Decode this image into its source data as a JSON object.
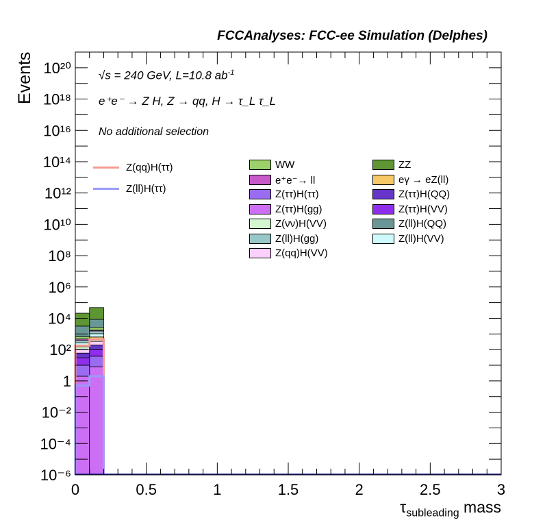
{
  "header": {
    "title": "FCCAnalyses: FCC-ee Simulation (Delphes)"
  },
  "annotations": {
    "energy": "√s = 240 GeV, L=10.8 ab",
    "energy_exp": "-1",
    "process": "e⁺e⁻ → Z H, Z → qq, H → τ_L τ_L",
    "selection": "No additional selection"
  },
  "colors": {
    "WW": "#9bd06a",
    "ZZ": "#5f9634",
    "ee_ll": "#c859c8",
    "egamma_eZll": "#f7c866",
    "Ztautau_Htautau": "#9a6cf2",
    "Ztautau_HQQ": "#6635c9",
    "Ztautau_Hgg": "#cd6ff4",
    "Ztautau_HVV": "#8f2fed",
    "Znunu_HVV": "#d3f6d0",
    "Zll_HQQ": "#699796",
    "Zll_Hgg": "#99c6c8",
    "Zll_HVV": "#cdfafa",
    "Zqq_HVV": "#fcd0fc",
    "signal_qq": "#f79a92",
    "signal_ll": "#9a9bf5"
  },
  "chart_data": {
    "type": "bar",
    "stacked": true,
    "log_y": true,
    "xlabel": "τ_subleading mass",
    "ylabel": "Events",
    "xlim": [
      0,
      3
    ],
    "ylim": [
      1e-06,
      1e+21
    ],
    "x_ticks": [
      "0",
      "0.5",
      "1",
      "1.5",
      "2",
      "2.5",
      "3"
    ],
    "y_ticks": [
      "10⁻⁶",
      "10⁻⁴",
      "10⁻²",
      "1",
      "10²",
      "10⁴",
      "10⁶",
      "10⁸",
      "10¹⁰",
      "10¹²",
      "10¹⁴",
      "10¹⁶",
      "10¹⁸",
      "10²⁰"
    ],
    "bins": [
      [
        0.0,
        0.1
      ],
      [
        0.1,
        0.2
      ]
    ],
    "backgrounds": [
      {
        "name": "Z(ττ)H(gg)",
        "color": "#cd6ff4",
        "values": [
          2,
          8
        ]
      },
      {
        "name": "Z(ττ)H(ττ)",
        "color": "#9a6cf2",
        "values": [
          8,
          30
        ]
      },
      {
        "name": "Z(ττ)H(VV)",
        "color": "#8f2fed",
        "values": [
          20,
          60
        ]
      },
      {
        "name": "Z(ττ)H(QQ)",
        "color": "#6635c9",
        "values": [
          30,
          100
        ]
      },
      {
        "name": "Z(qq)H(VV)",
        "color": "#fcd0fc",
        "values": [
          45,
          140
        ]
      },
      {
        "name": "Z(νν)H(VV)",
        "color": "#d3f6d0",
        "values": [
          50,
          150
        ]
      },
      {
        "name": "eγ → eZ(ll)",
        "color": "#f7c866",
        "values": [
          40,
          150
        ]
      },
      {
        "name": "Z(ll)H(VV)",
        "color": "#cdfafa",
        "values": [
          80,
          400
        ]
      },
      {
        "name": "Z(ll)H(gg)",
        "color": "#99c6c8",
        "values": [
          120,
          500
        ]
      },
      {
        "name": "e⁺e⁻→ ll",
        "color": "#c859c8",
        "values": [
          80,
          200
        ]
      },
      {
        "name": "WW",
        "color": "#9bd06a",
        "values": [
          200,
          800
        ]
      },
      {
        "name": "Z(ll)H(QQ)",
        "color": "#699796",
        "values": [
          2500,
          6000
        ]
      },
      {
        "name": "ZZ",
        "color": "#5f9634",
        "values": [
          18000,
          40000
        ]
      }
    ],
    "signals": [
      {
        "name": "Z(qq)H(ττ)",
        "color": "#f79a92",
        "values": [
          180,
          450
        ]
      },
      {
        "name": "Z(ll)H(ττ)",
        "color": "#9a9bf5",
        "values": [
          0.5,
          2
        ]
      }
    ],
    "legend_signals": [
      "Z(qq)H(ττ)",
      "Z(ll)H(ττ)"
    ],
    "legend_backgrounds": [
      "WW",
      "ZZ",
      "e⁺e⁻→ ll",
      "eγ → eZ(ll)",
      "Z(ττ)H(ττ)",
      "Z(ττ)H(QQ)",
      "Z(ττ)H(gg)",
      "Z(ττ)H(VV)",
      "Z(νν)H(VV)",
      "Z(ll)H(QQ)",
      "Z(ll)H(gg)",
      "Z(ll)H(VV)",
      "Z(qq)H(VV)"
    ],
    "legend_placement": "top-right"
  }
}
